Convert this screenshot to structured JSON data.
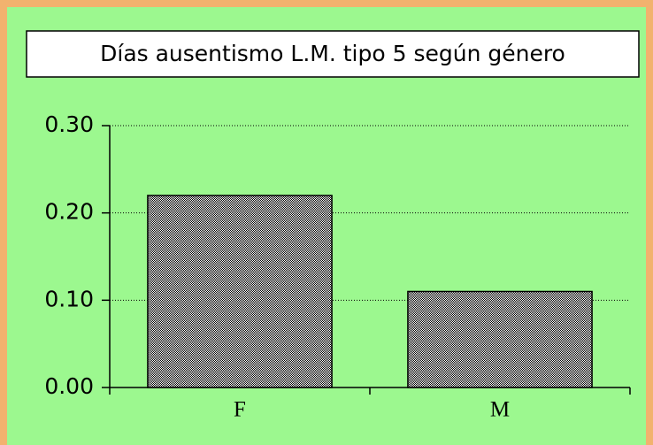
{
  "chart_data": {
    "type": "bar",
    "title": "Días ausentismo L.M. tipo 5 según género",
    "categories": [
      "F",
      "M"
    ],
    "values": [
      0.22,
      0.11
    ],
    "color": "#000000",
    "ylim": [
      0,
      0.3
    ],
    "yticks": [
      {
        "value": 0,
        "label": "0.00"
      },
      {
        "value": 0.1,
        "label": "0.10"
      },
      {
        "value": 0.2,
        "label": "0.20"
      },
      {
        "value": 0.3,
        "label": "0.30"
      }
    ],
    "grid": true
  }
}
